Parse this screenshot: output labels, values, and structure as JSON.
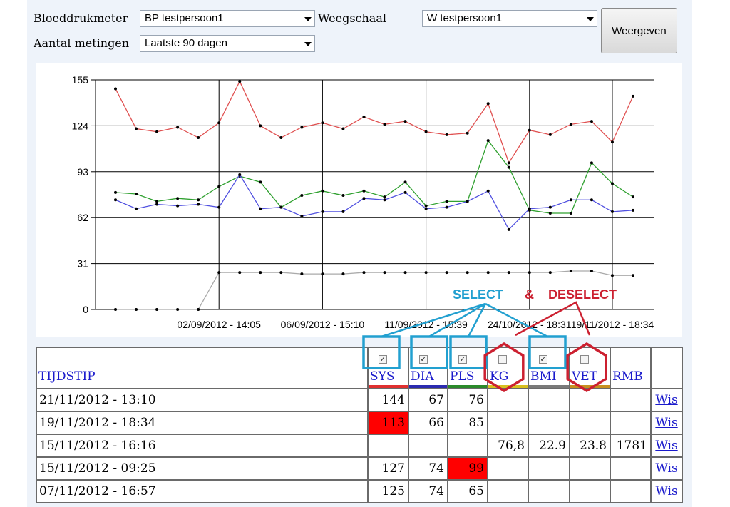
{
  "filters": {
    "bp_label": "Bloeddrukmeter",
    "bp_value": "BP testpersoon1",
    "scale_label": "Weegschaal",
    "scale_value": "W testpersoon1",
    "count_label": "Aantal metingen",
    "count_value": "Laatste 90 dagen",
    "show_button": "Weergeven"
  },
  "chart_data": {
    "type": "line",
    "y_ticks": [
      "155",
      "124",
      "93",
      "62",
      "31",
      "0"
    ],
    "ylim": [
      0,
      155
    ],
    "x_tick_labels": [
      "02/09/2012 - 14:05",
      "06/09/2012 - 15:10",
      "11/09/2012 - 15:39",
      "24/10/2012 - 18:31",
      "19/11/2012 - 18:34"
    ],
    "grid": true,
    "series": [
      {
        "color": "#e05050",
        "values": [
          149,
          122,
          120,
          123,
          116,
          126,
          154,
          124,
          116,
          123,
          126,
          122,
          130,
          125,
          127,
          120,
          118,
          119,
          139,
          99,
          121,
          118,
          125,
          127,
          113,
          144
        ]
      },
      {
        "color": "#2fa02f",
        "values": [
          79,
          78,
          73,
          75,
          74,
          83,
          90,
          86,
          69,
          77,
          80,
          77,
          80,
          76,
          86,
          70,
          73,
          73,
          114,
          96,
          67,
          65,
          65,
          99,
          85,
          76
        ]
      },
      {
        "color": "#5050e0",
        "values": [
          74,
          68,
          71,
          70,
          71,
          69,
          91,
          68,
          69,
          63,
          66,
          66,
          75,
          74,
          79,
          68,
          69,
          73,
          80,
          54,
          68,
          69,
          74,
          74,
          66,
          67
        ]
      },
      {
        "color": "#aaaaaa",
        "values": [
          0,
          0,
          0,
          0,
          0,
          25,
          25,
          25,
          25,
          24,
          24,
          24,
          25,
          25,
          25,
          25,
          25,
          25,
          25,
          25,
          25,
          25,
          26,
          26,
          23,
          23
        ]
      }
    ]
  },
  "annotations": {
    "select": "SELECT",
    "amp": "&",
    "deselect": "DESELECT"
  },
  "table": {
    "header_time": "TIJDSTIP",
    "columns": [
      {
        "label": "SYS",
        "checked": true,
        "stripe": "#e03030"
      },
      {
        "label": "DIA",
        "checked": true,
        "stripe": "#2a2ab0"
      },
      {
        "label": "PLS",
        "checked": true,
        "stripe": "#2a8a2a"
      },
      {
        "label": "KG",
        "checked": false,
        "stripe": "#d8c020"
      },
      {
        "label": "BMI",
        "checked": true,
        "stripe": "#7a7a7a"
      },
      {
        "label": "VET",
        "checked": false,
        "stripe": "#c89020"
      },
      {
        "label": "RMB"
      }
    ],
    "rows": [
      {
        "time": "21/11/2012 - 13:10",
        "sys": "144",
        "dia": "67",
        "pls": "76",
        "kg": "",
        "bmi": "",
        "vet": "",
        "rmb": "",
        "wis": "Wis"
      },
      {
        "time": "19/11/2012 - 18:34",
        "sys": "113",
        "dia": "66",
        "pls": "85",
        "kg": "",
        "bmi": "",
        "vet": "",
        "rmb": "",
        "wis": "Wis",
        "sys_alert": true
      },
      {
        "time": "15/11/2012 - 16:16",
        "sys": "",
        "dia": "",
        "pls": "",
        "kg": "76,8",
        "bmi": "22.9",
        "vet": "23.8",
        "rmb": "1781",
        "wis": "Wis"
      },
      {
        "time": "15/11/2012 - 09:25",
        "sys": "127",
        "dia": "74",
        "pls": "99",
        "kg": "",
        "bmi": "",
        "vet": "",
        "rmb": "",
        "wis": "Wis",
        "pls_alert": true
      },
      {
        "time": "07/11/2012 - 16:57",
        "sys": "125",
        "dia": "74",
        "pls": "65",
        "kg": "",
        "bmi": "",
        "vet": "",
        "rmb": "",
        "wis": "Wis"
      }
    ]
  }
}
